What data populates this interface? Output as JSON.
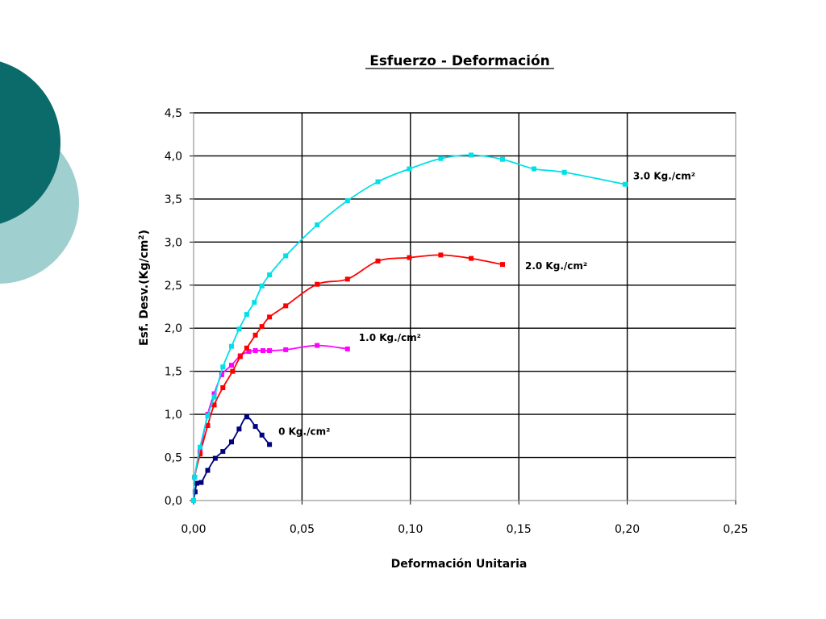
{
  "chart_data": {
    "type": "scatter",
    "title": "Esfuerzo - Deformación",
    "xlabel": "Deformación Unitaria",
    "ylabel": "Esf. Desv.(Kg/cm2)",
    "xlim": [
      0,
      0.25
    ],
    "ylim": [
      0,
      4.5
    ],
    "x_ticks": [
      "0,00",
      "0,05",
      "0,10",
      "0,15",
      "0,20",
      "0,25"
    ],
    "y_ticks": [
      "0,0",
      "0,5",
      "1,0",
      "1,5",
      "2,0",
      "2,5",
      "3,0",
      "3,5",
      "4,0",
      "4,5"
    ],
    "grid": true,
    "legend": "none",
    "series": [
      {
        "name": "0 Kg./cm2",
        "color": "#000080",
        "x": [
          0.0,
          0.0007,
          0.0015,
          0.0035,
          0.0065,
          0.01,
          0.0135,
          0.0175,
          0.021,
          0.0245,
          0.0285,
          0.0315,
          0.035
        ],
        "y": [
          0.0,
          0.1,
          0.2,
          0.21,
          0.35,
          0.49,
          0.57,
          0.68,
          0.83,
          0.97,
          0.86,
          0.76,
          0.65
        ]
      },
      {
        "name": "1.0 Kg./cm2",
        "color": "#ff00ff",
        "x": [
          0.0,
          0.0005,
          0.003,
          0.0065,
          0.0095,
          0.013,
          0.0175,
          0.0215,
          0.0255,
          0.0285,
          0.032,
          0.035,
          0.0425,
          0.057,
          0.071
        ],
        "y": [
          0.0,
          0.27,
          0.57,
          1.0,
          1.24,
          1.46,
          1.57,
          1.68,
          1.73,
          1.74,
          1.74,
          1.74,
          1.75,
          1.8,
          1.76
        ]
      },
      {
        "name": "2.0 Kg./cm2",
        "color": "#ff0000",
        "x": [
          0.0,
          0.0005,
          0.003,
          0.0065,
          0.0095,
          0.0135,
          0.018,
          0.0215,
          0.0245,
          0.0285,
          0.0315,
          0.035,
          0.0425,
          0.057,
          0.071,
          0.085,
          0.0995,
          0.114,
          0.128,
          0.1425
        ],
        "y": [
          0.0,
          0.27,
          0.54,
          0.87,
          1.11,
          1.31,
          1.5,
          1.67,
          1.77,
          1.92,
          2.02,
          2.13,
          2.26,
          2.51,
          2.57,
          2.78,
          2.82,
          2.85,
          2.81,
          2.74
        ]
      },
      {
        "name": "3.0 Kg./cm2",
        "color": "#00e0e8",
        "x": [
          0.0,
          0.0005,
          0.003,
          0.0065,
          0.0095,
          0.0135,
          0.0175,
          0.021,
          0.0245,
          0.028,
          0.0315,
          0.035,
          0.0425,
          0.057,
          0.071,
          0.085,
          0.0995,
          0.114,
          0.128,
          0.1425,
          0.157,
          0.171,
          0.199
        ],
        "y": [
          0.0,
          0.27,
          0.62,
          0.98,
          1.2,
          1.55,
          1.79,
          1.99,
          2.16,
          2.3,
          2.49,
          2.62,
          2.84,
          3.2,
          3.48,
          3.7,
          3.85,
          3.97,
          4.01,
          3.96,
          3.85,
          3.81,
          3.67
        ]
      }
    ],
    "annotations": [
      {
        "text": "0 Kg./cm²",
        "series": 0
      },
      {
        "text": "1.0 Kg./cm²",
        "series": 1
      },
      {
        "text": "2.0 Kg./cm²",
        "series": 2
      },
      {
        "text": "3.0 Kg./cm²",
        "series": 3
      }
    ]
  },
  "decor": {
    "dark_circle_color": "#0b6b6b",
    "light_circle_color": "#9fcfcf"
  }
}
